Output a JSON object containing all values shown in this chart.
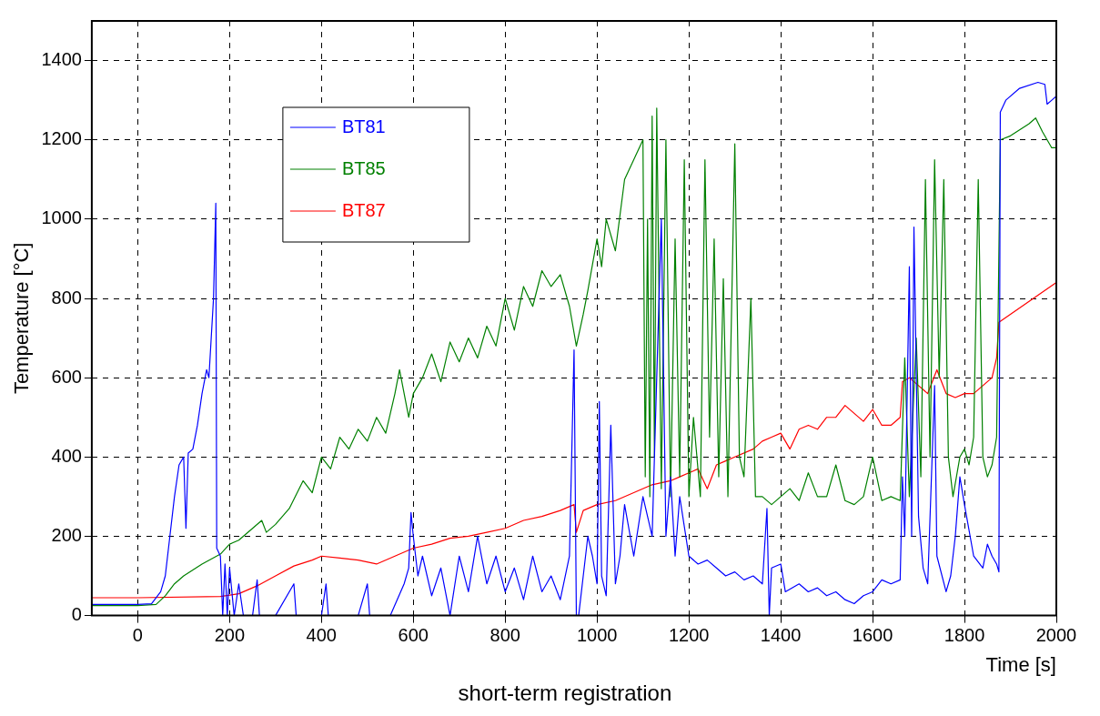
{
  "chart_data": {
    "type": "line",
    "xlabel": "Time [s]",
    "ylabel": "Temperature [°C]",
    "annotations": [
      "short-term registration"
    ],
    "xlim": [
      -100,
      2000
    ],
    "xticks": [
      0,
      200,
      400,
      600,
      800,
      1000,
      1200,
      1400,
      1600,
      1800,
      2000
    ],
    "ylim": [
      0,
      1500
    ],
    "yticks": [
      0,
      200,
      400,
      600,
      800,
      1000,
      1200,
      1400
    ],
    "grid": true,
    "legend": "top left",
    "line_style": "solid",
    "marker": "none",
    "series": [
      {
        "name": "BT81",
        "color": "#0000ff",
        "x": [
          -100,
          0,
          30,
          50,
          60,
          70,
          80,
          90,
          100,
          105,
          110,
          120,
          130,
          140,
          150,
          155,
          160,
          165,
          170,
          172,
          180,
          185,
          190,
          195,
          200,
          210,
          220,
          230,
          250,
          260,
          265,
          300,
          340,
          345,
          400,
          410,
          415,
          480,
          500,
          505,
          550,
          580,
          590,
          595,
          600,
          610,
          620,
          640,
          660,
          680,
          700,
          720,
          740,
          760,
          780,
          800,
          820,
          840,
          860,
          880,
          900,
          920,
          940,
          950,
          955,
          960,
          970,
          980,
          990,
          1000,
          1005,
          1010,
          1020,
          1030,
          1040,
          1050,
          1060,
          1080,
          1100,
          1120,
          1140,
          1150,
          1160,
          1170,
          1180,
          1200,
          1220,
          1240,
          1260,
          1280,
          1300,
          1320,
          1340,
          1360,
          1370,
          1375,
          1380,
          1400,
          1410,
          1440,
          1460,
          1480,
          1500,
          1520,
          1540,
          1560,
          1580,
          1600,
          1620,
          1640,
          1660,
          1665,
          1670,
          1680,
          1685,
          1690,
          1700,
          1710,
          1720,
          1735,
          1740,
          1760,
          1770,
          1780,
          1790,
          1800,
          1820,
          1840,
          1850,
          1860,
          1870,
          1875,
          1878,
          1890,
          1920,
          1960,
          1975,
          1980,
          1990,
          2000
        ],
        "values": [
          28,
          28,
          30,
          60,
          100,
          200,
          300,
          380,
          400,
          220,
          410,
          420,
          480,
          560,
          620,
          600,
          700,
          800,
          1040,
          170,
          150,
          0,
          130,
          0,
          120,
          0,
          80,
          0,
          0,
          90,
          0,
          0,
          80,
          0,
          0,
          80,
          0,
          0,
          80,
          0,
          0,
          80,
          120,
          260,
          200,
          100,
          150,
          50,
          120,
          0,
          150,
          60,
          200,
          80,
          150,
          60,
          120,
          40,
          150,
          60,
          100,
          40,
          150,
          670,
          0,
          0,
          100,
          200,
          150,
          80,
          540,
          100,
          50,
          480,
          80,
          150,
          280,
          150,
          300,
          200,
          1000,
          200,
          350,
          150,
          300,
          150,
          130,
          140,
          120,
          100,
          110,
          90,
          100,
          80,
          270,
          0,
          120,
          130,
          60,
          80,
          60,
          70,
          50,
          60,
          40,
          30,
          50,
          60,
          90,
          80,
          90,
          350,
          200,
          880,
          200,
          980,
          250,
          120,
          80,
          580,
          150,
          60,
          100,
          200,
          350,
          280,
          150,
          120,
          180,
          150,
          130,
          110,
          1270,
          1300,
          1330,
          1345,
          1340,
          1290,
          1300,
          1310
        ]
      },
      {
        "name": "BT85",
        "color": "#008000",
        "x": [
          -100,
          0,
          40,
          60,
          80,
          100,
          140,
          180,
          200,
          220,
          250,
          270,
          280,
          300,
          330,
          360,
          380,
          400,
          420,
          440,
          460,
          480,
          500,
          520,
          540,
          560,
          570,
          590,
          600,
          620,
          640,
          660,
          680,
          700,
          720,
          740,
          760,
          780,
          800,
          820,
          840,
          860,
          880,
          900,
          920,
          940,
          955,
          970,
          980,
          1000,
          1010,
          1020,
          1040,
          1060,
          1080,
          1100,
          1105,
          1110,
          1115,
          1120,
          1125,
          1130,
          1140,
          1150,
          1160,
          1170,
          1180,
          1190,
          1200,
          1210,
          1225,
          1235,
          1245,
          1255,
          1265,
          1275,
          1285,
          1300,
          1310,
          1320,
          1335,
          1345,
          1360,
          1380,
          1400,
          1420,
          1440,
          1460,
          1480,
          1500,
          1520,
          1540,
          1560,
          1580,
          1600,
          1620,
          1640,
          1660,
          1670,
          1680,
          1695,
          1705,
          1715,
          1725,
          1735,
          1745,
          1755,
          1765,
          1775,
          1790,
          1800,
          1810,
          1820,
          1830,
          1840,
          1850,
          1860,
          1870,
          1878,
          1900,
          1940,
          1955,
          1970,
          1990,
          2000
        ],
        "values": [
          25,
          25,
          28,
          50,
          80,
          100,
          130,
          155,
          180,
          190,
          220,
          240,
          210,
          230,
          270,
          340,
          310,
          400,
          370,
          450,
          420,
          470,
          440,
          500,
          460,
          560,
          620,
          500,
          560,
          600,
          660,
          590,
          690,
          640,
          700,
          650,
          730,
          680,
          800,
          720,
          830,
          780,
          870,
          830,
          860,
          780,
          680,
          760,
          820,
          950,
          880,
          1000,
          920,
          1100,
          1150,
          1200,
          350,
          1000,
          300,
          1260,
          400,
          1280,
          320,
          1200,
          300,
          950,
          350,
          1150,
          300,
          500,
          300,
          1150,
          450,
          950,
          350,
          850,
          300,
          1190,
          400,
          350,
          800,
          300,
          300,
          280,
          300,
          320,
          290,
          360,
          300,
          300,
          380,
          290,
          280,
          300,
          400,
          290,
          300,
          290,
          650,
          300,
          700,
          350,
          1100,
          400,
          1150,
          600,
          1100,
          400,
          300,
          400,
          420,
          380,
          450,
          1100,
          400,
          350,
          380,
          450,
          1200,
          1210,
          1240,
          1255,
          1220,
          1180,
          1180
        ]
      },
      {
        "name": "BT87",
        "color": "#ff0000",
        "x": [
          -100,
          0,
          180,
          220,
          260,
          300,
          340,
          380,
          400,
          440,
          480,
          520,
          560,
          600,
          640,
          680,
          720,
          760,
          800,
          840,
          880,
          920,
          950,
          955,
          970,
          1000,
          1040,
          1080,
          1120,
          1160,
          1180,
          1200,
          1220,
          1240,
          1260,
          1280,
          1300,
          1340,
          1360,
          1380,
          1400,
          1420,
          1440,
          1460,
          1480,
          1500,
          1520,
          1540,
          1560,
          1580,
          1600,
          1620,
          1640,
          1660,
          1665,
          1680,
          1700,
          1720,
          1740,
          1760,
          1780,
          1800,
          1820,
          1840,
          1860,
          1870,
          1875,
          2000
        ],
        "values": [
          45,
          45,
          48,
          55,
          75,
          100,
          125,
          140,
          150,
          145,
          140,
          130,
          150,
          170,
          180,
          195,
          200,
          210,
          220,
          240,
          250,
          265,
          280,
          210,
          265,
          280,
          290,
          310,
          330,
          340,
          350,
          360,
          370,
          320,
          380,
          390,
          400,
          420,
          440,
          450,
          460,
          420,
          470,
          480,
          470,
          500,
          500,
          530,
          510,
          490,
          520,
          480,
          480,
          500,
          590,
          600,
          580,
          560,
          620,
          560,
          550,
          560,
          560,
          580,
          600,
          650,
          740,
          840
        ]
      }
    ]
  }
}
